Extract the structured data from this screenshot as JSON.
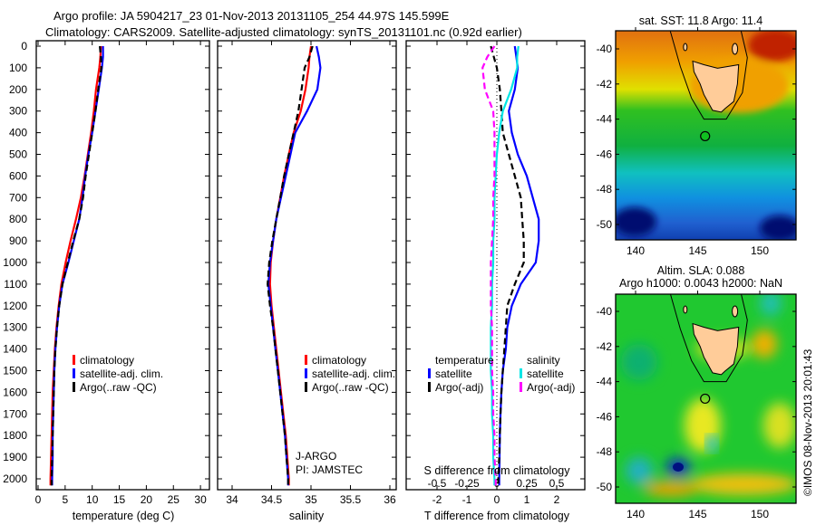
{
  "title": {
    "line1": "Argo profile: JA 5904217_23 01-Nov-2013 20131105_254 44.97S 145.599E",
    "line2": "Climatology: CARS2009. Satellite-adjusted climatology: synTS_20131101.nc (0.92d earlier)"
  },
  "colors": {
    "climatology": "#ff0000",
    "satellite": "#0000ff",
    "argo": "#000000",
    "s_satellite": "#00e5e5",
    "s_argo": "#ff00ff",
    "land": "#ffcc99"
  },
  "chart_data": [
    {
      "type": "line",
      "name": "temperature",
      "xlabel": "temperature (deg C)",
      "ylabel": "depth",
      "xlim": [
        -1.3,
        31.5
      ],
      "ylim": [
        2050,
        0
      ],
      "xticks": [
        0,
        5,
        10,
        15,
        20,
        25,
        30
      ],
      "yticks": [
        0,
        100,
        200,
        300,
        400,
        500,
        600,
        700,
        800,
        900,
        1000,
        1100,
        1200,
        1300,
        1400,
        1500,
        1600,
        1700,
        1800,
        1900,
        2000
      ],
      "depth": [
        0,
        50,
        100,
        200,
        300,
        400,
        500,
        600,
        700,
        800,
        900,
        1000,
        1100,
        1200,
        1300,
        1400,
        1500,
        1600,
        1700,
        1800,
        1900,
        2000,
        2030
      ],
      "series": [
        {
          "name": "climatology",
          "values": [
            11.6,
            11.5,
            11.3,
            10.7,
            10.3,
            9.8,
            9.2,
            8.6,
            7.9,
            7.0,
            6.0,
            5.1,
            4.3,
            3.8,
            3.4,
            3.1,
            2.9,
            2.7,
            2.6,
            2.5,
            2.4,
            2.3,
            2.3
          ]
        },
        {
          "name": "satellite-adj. clim.",
          "values": [
            12.0,
            12.0,
            11.8,
            11.2,
            10.6,
            10.0,
            9.3,
            8.7,
            8.2,
            7.6,
            6.6,
            5.6,
            4.5,
            3.9,
            3.5,
            3.2,
            3.0,
            2.9,
            2.8,
            2.7,
            2.7,
            2.6,
            2.6
          ]
        },
        {
          "name": "Argo(..raw -QC)",
          "values": [
            11.4,
            11.6,
            11.7,
            11.1,
            10.6,
            10.0,
            9.4,
            8.8,
            8.3,
            7.6,
            6.5,
            5.5,
            4.5,
            3.9,
            3.5,
            3.2,
            3.0,
            2.9,
            2.8,
            2.7,
            2.6,
            2.5,
            2.5
          ]
        }
      ],
      "legend": [
        "climatology",
        "satellite-adj. clim.",
        "Argo(..raw -QC)"
      ]
    },
    {
      "type": "line",
      "name": "salinity",
      "xlabel": "salinity",
      "xlim": [
        33.82,
        36.08
      ],
      "ylim": [
        2050,
        0
      ],
      "xticks": [
        "34",
        "34.5",
        "35",
        "35.5",
        "36"
      ],
      "depth": [
        0,
        50,
        100,
        200,
        300,
        400,
        500,
        600,
        700,
        800,
        900,
        1000,
        1100,
        1200,
        1300,
        1400,
        1500,
        1600,
        1700,
        1800,
        1900,
        2000,
        2030
      ],
      "series": [
        {
          "name": "climatology",
          "values": [
            35.0,
            34.98,
            34.97,
            34.93,
            34.87,
            34.78,
            34.72,
            34.66,
            34.61,
            34.56,
            34.52,
            34.49,
            34.48,
            34.5,
            34.53,
            34.56,
            34.59,
            34.62,
            34.65,
            34.68,
            34.7,
            34.72,
            34.72
          ]
        },
        {
          "name": "satellite-adj. clim.",
          "values": [
            35.07,
            35.1,
            35.12,
            35.08,
            34.95,
            34.8,
            34.74,
            34.68,
            34.62,
            34.56,
            34.52,
            34.48,
            34.46,
            34.49,
            34.52,
            34.55,
            34.58,
            34.61,
            34.64,
            34.67,
            34.69,
            34.71,
            34.71
          ]
        },
        {
          "name": "Argo(..raw -QC)",
          "values": [
            35.02,
            34.98,
            34.92,
            34.88,
            34.84,
            34.78,
            34.72,
            34.66,
            34.61,
            34.56,
            34.51,
            34.47,
            34.45,
            34.48,
            34.52,
            34.55,
            34.58,
            34.61,
            34.64,
            34.67,
            34.69,
            34.71,
            34.71
          ]
        }
      ],
      "legend": [
        "climatology",
        "satellite-adj. clim.",
        "Argo(..raw -QC)"
      ],
      "annotation": [
        "J-ARGO",
        "PI: JAMSTEC"
      ]
    },
    {
      "type": "line",
      "name": "differences",
      "xlabel": "T difference from climatology",
      "x2label": "S difference from climatology",
      "xlim": [
        -3,
        3
      ],
      "x2lim": [
        -0.75,
        0.75
      ],
      "xticks": [
        "-2",
        "-1",
        "0",
        "1",
        "2"
      ],
      "x2ticks": [
        "-0.5",
        "-0.25",
        "0",
        "0.25",
        "0.5"
      ],
      "ylim": [
        2050,
        0
      ],
      "depth": [
        0,
        50,
        100,
        200,
        300,
        400,
        500,
        600,
        700,
        800,
        900,
        1000,
        1100,
        1200,
        1300,
        1400,
        1500,
        1600,
        1700,
        1800,
        1900,
        2000,
        2030
      ],
      "series": [
        {
          "name": "temperature satellite",
          "axis": "T",
          "values": [
            0.6,
            0.65,
            0.7,
            0.6,
            0.4,
            0.5,
            0.7,
            1.0,
            1.2,
            1.4,
            1.4,
            1.3,
            0.8,
            0.5,
            0.35,
            0.3,
            0.2,
            0.15,
            0.12,
            0.1,
            0.09,
            0.08,
            0.08
          ]
        },
        {
          "name": "temperature Argo(-adj)",
          "axis": "T",
          "values": [
            -0.2,
            -0.1,
            0.0,
            0.1,
            0.15,
            0.2,
            0.4,
            0.6,
            0.8,
            0.85,
            0.9,
            0.9,
            0.6,
            0.35,
            0.3,
            0.25,
            0.2,
            0.15,
            0.12,
            0.1,
            0.08,
            0.05,
            0.05
          ]
        },
        {
          "name": "salinity satellite",
          "axis": "S",
          "values": [
            0.18,
            0.17,
            0.17,
            0.12,
            0.05,
            0.02,
            0.0,
            -0.01,
            -0.02,
            -0.02,
            -0.03,
            -0.03,
            -0.04,
            -0.04,
            -0.05,
            -0.05,
            -0.05,
            -0.04,
            -0.04,
            -0.03,
            -0.03,
            -0.02,
            -0.02
          ]
        },
        {
          "name": "salinity Argo(-adj)",
          "axis": "S",
          "values": [
            -0.02,
            -0.08,
            -0.12,
            -0.1,
            -0.03,
            -0.02,
            -0.02,
            -0.02,
            -0.03,
            -0.03,
            -0.04,
            -0.05,
            -0.05,
            -0.05,
            -0.04,
            -0.04,
            -0.04,
            -0.03,
            -0.03,
            -0.02,
            -0.02,
            -0.01,
            -0.01
          ]
        }
      ],
      "legend": {
        "temperature": "temperature",
        "salinity": "salinity",
        "satellite": "satellite",
        "argo": "Argo(-adj)"
      }
    },
    {
      "type": "heatmap",
      "name": "sst-map",
      "title": "sat. SST: 11.8 Argo: 11.4",
      "lonticks": [
        "140",
        "145",
        "150"
      ],
      "latticks": [
        "-40",
        "-42",
        "-44",
        "-46",
        "-48",
        "-50"
      ],
      "argo_position": [
        145.599,
        -44.97
      ]
    },
    {
      "type": "heatmap",
      "name": "sla-map",
      "title1": "Altim. SLA: 0.088",
      "title2": "Argo h1000: 0.0043 h2000: NaN",
      "lonticks": [
        "140",
        "145",
        "150"
      ],
      "latticks": [
        "-40",
        "-42",
        "-44",
        "-46",
        "-48",
        "-50"
      ],
      "argo_position": [
        145.599,
        -44.97
      ]
    }
  ],
  "credit": "©IMOS 08-Nov-2013 20:01:43"
}
